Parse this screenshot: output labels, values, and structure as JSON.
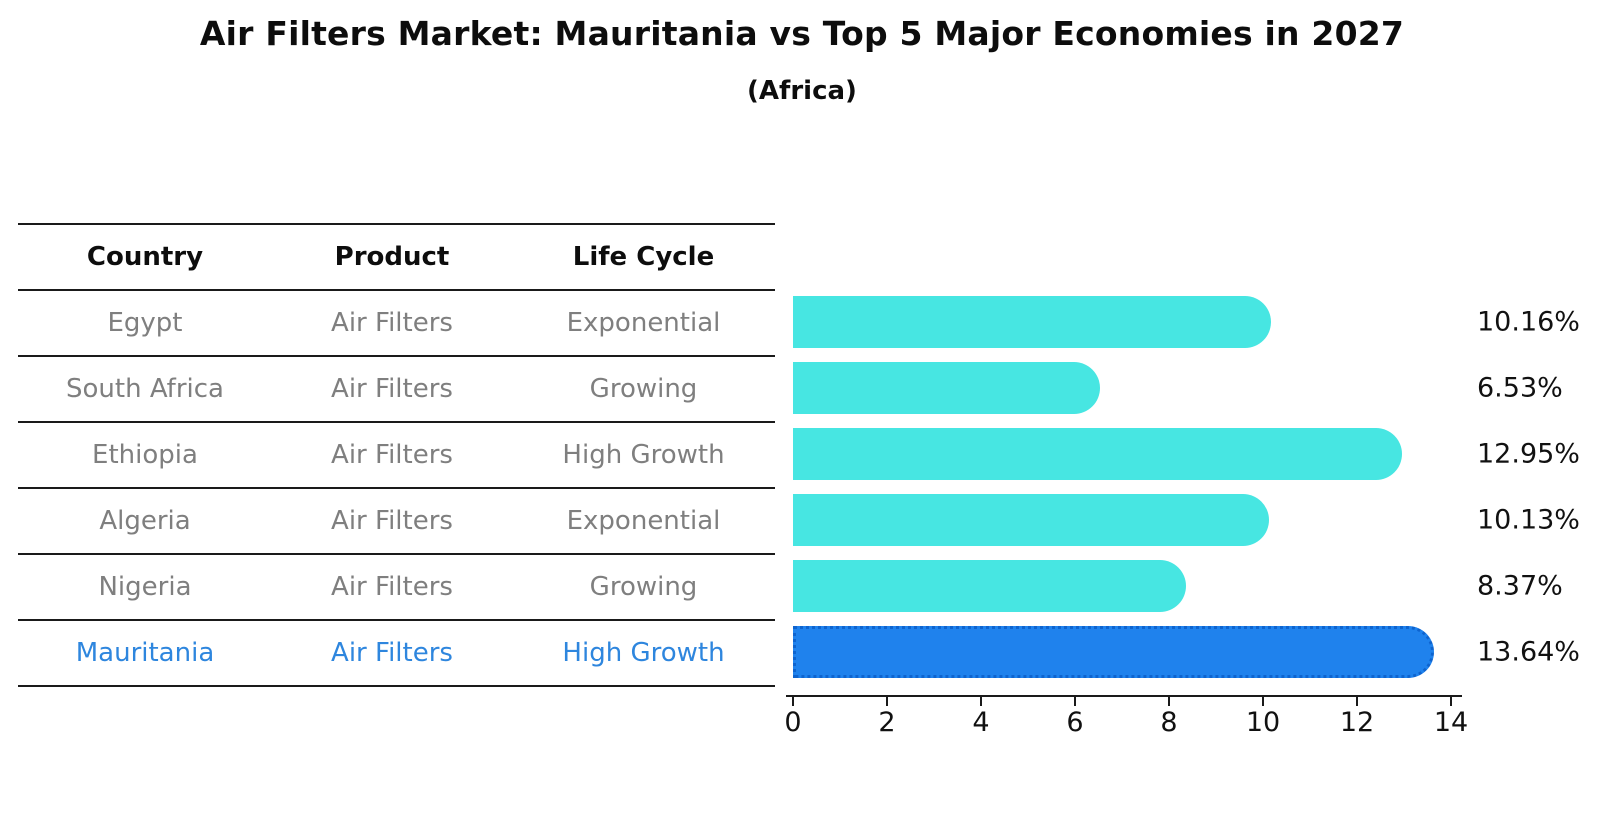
{
  "page": {
    "title": "Air Filters Market: Mauritania vs Top 5 Major Economies in 2027",
    "subtitle": "(Africa)",
    "background": "#ffffff"
  },
  "table": {
    "headers": [
      "Country",
      "Product",
      "Life Cycle"
    ],
    "rows": [
      {
        "country": "Egypt",
        "product": "Air Filters",
        "life_cycle": "Exponential",
        "highlighted": false
      },
      {
        "country": "South Africa",
        "product": "Air Filters",
        "life_cycle": "Growing",
        "highlighted": false
      },
      {
        "country": "Ethiopia",
        "product": "Air Filters",
        "life_cycle": "High Growth",
        "highlighted": false
      },
      {
        "country": "Algeria",
        "product": "Air Filters",
        "life_cycle": "Exponential",
        "highlighted": false
      },
      {
        "country": "Nigeria",
        "product": "Air Filters",
        "life_cycle": "Growing",
        "highlighted": false
      },
      {
        "country": "Mauritania",
        "product": "Air Filters",
        "life_cycle": "High Growth",
        "highlighted": true
      }
    ]
  },
  "chart_data": {
    "type": "bar",
    "orientation": "horizontal",
    "title": "Air Filters Market: Mauritania vs Top 5 Major Economies in 2027",
    "subtitle": "(Africa)",
    "categories": [
      "Egypt",
      "South Africa",
      "Ethiopia",
      "Algeria",
      "Nigeria",
      "Mauritania"
    ],
    "values": [
      10.16,
      6.53,
      12.95,
      10.13,
      8.37,
      13.64
    ],
    "value_labels": [
      "10.16%",
      "6.53%",
      "12.95%",
      "10.13%",
      "8.37%",
      "13.64%"
    ],
    "xlabel": "",
    "ylabel": "",
    "xlim": [
      0,
      14
    ],
    "xticks": [
      0,
      2,
      4,
      6,
      8,
      10,
      12,
      14
    ],
    "grid": false,
    "legend": false,
    "highlight_index": 5,
    "colors": {
      "bar": "#47e6e2",
      "highlight_bar": "#1f82ed",
      "highlight_edge": "#0e64cf",
      "highlight_text": "#2e86de",
      "row_text": "#7f7f7f",
      "header_text": "#0d0d0d",
      "axis": "#1a1a1a"
    }
  }
}
